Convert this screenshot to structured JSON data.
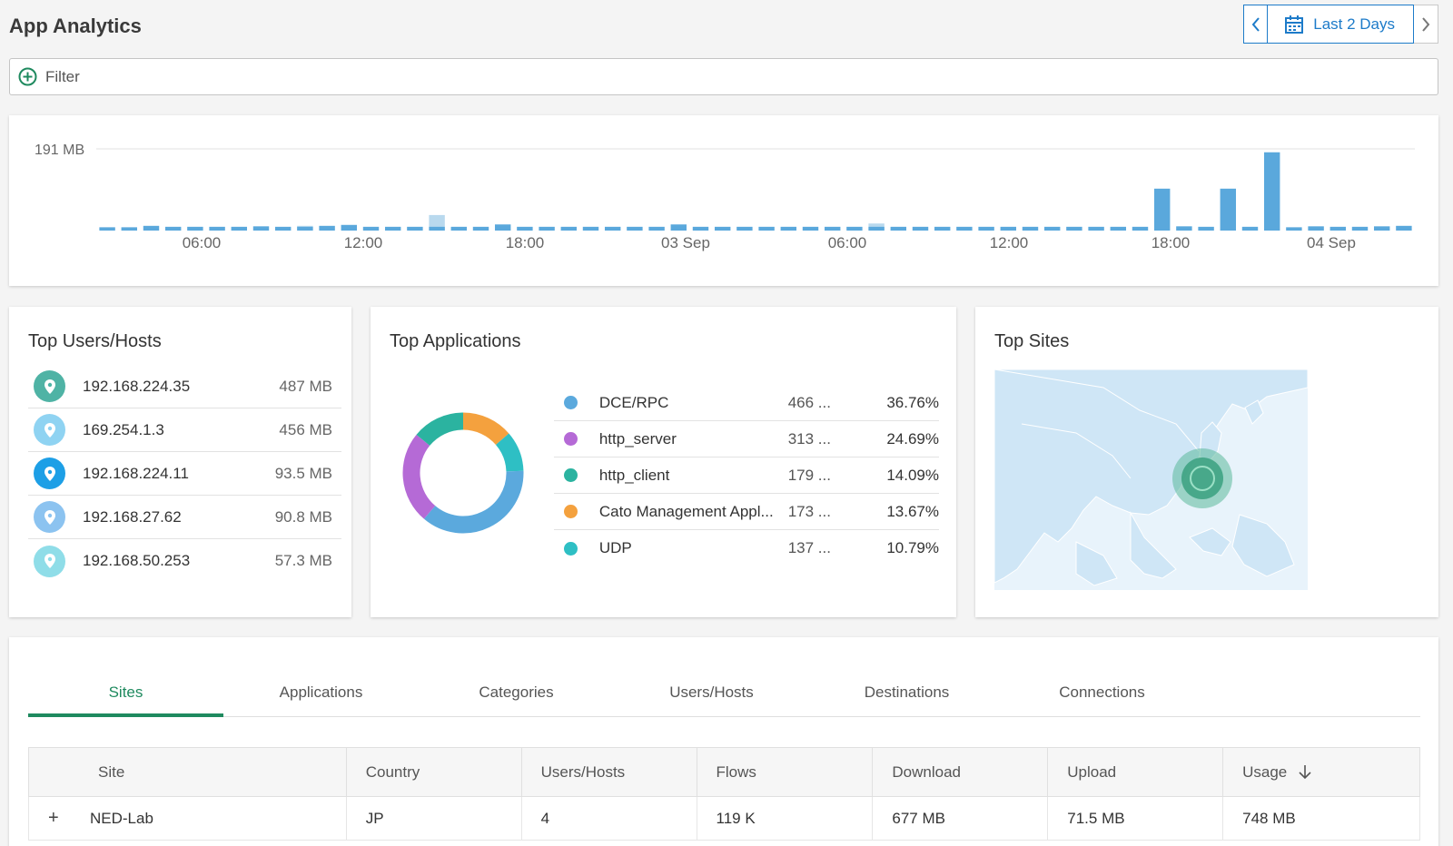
{
  "header": {
    "title": "App Analytics",
    "date_range_label": "Last 2 Days"
  },
  "filter": {
    "label": "Filter"
  },
  "timeline": {
    "y_max_label": "191 MB",
    "x_labels": [
      "06:00",
      "12:00",
      "18:00",
      "03 Sep",
      "06:00",
      "12:00",
      "18:00",
      "04 Sep"
    ]
  },
  "chart_data": {
    "type": "bar",
    "ylabel": "",
    "y_tick_label": "191 MB",
    "ylim": [
      0,
      191
    ],
    "x_tick_labels": [
      "06:00",
      "12:00",
      "18:00",
      "03 Sep",
      "06:00",
      "12:00",
      "18:00",
      "04 Sep"
    ],
    "values": [
      14,
      14,
      20,
      16,
      16,
      16,
      16,
      18,
      16,
      16,
      20,
      24,
      16,
      16,
      16,
      16,
      16,
      16,
      26,
      16,
      16,
      16,
      16,
      16,
      16,
      16,
      26,
      16,
      16,
      16,
      16,
      16,
      16,
      16,
      16,
      16,
      16,
      16,
      16,
      16,
      16,
      16,
      16,
      16,
      16,
      16,
      16,
      16,
      98,
      18,
      16,
      98,
      16,
      183,
      14,
      18,
      16,
      16,
      18,
      20
    ],
    "overlay_values": {
      "9": 20,
      "15": 66,
      "35": 30
    },
    "colors": {
      "bar": "#5aa8dc",
      "overlay": "#b9d9ee"
    }
  },
  "top_users": {
    "title": "Top Users/Hosts",
    "items": [
      {
        "ip": "192.168.224.35",
        "usage": "487 MB",
        "color": "#4fb3a5"
      },
      {
        "ip": "169.254.1.3",
        "usage": "456 MB",
        "color": "#8fd3f2"
      },
      {
        "ip": "192.168.224.11",
        "usage": "93.5 MB",
        "color": "#1d9fe6"
      },
      {
        "ip": "192.168.27.62",
        "usage": "90.8 MB",
        "color": "#8cc3f0"
      },
      {
        "ip": "192.168.50.253",
        "usage": "57.3 MB",
        "color": "#8fdde8"
      }
    ]
  },
  "top_apps": {
    "title": "Top Applications",
    "items": [
      {
        "name": "DCE/RPC",
        "usage": "466 ...",
        "pct": "36.76%",
        "value": 36.76,
        "color": "#5ba9dd"
      },
      {
        "name": "http_server",
        "usage": "313 ...",
        "pct": "24.69%",
        "value": 24.69,
        "color": "#b56ad6"
      },
      {
        "name": "http_client",
        "usage": "179 ...",
        "pct": "14.09%",
        "value": 14.09,
        "color": "#2bb3a0"
      },
      {
        "name": "Cato Management Appl...",
        "usage": "173 ...",
        "pct": "13.67%",
        "value": 13.67,
        "color": "#f4a13e"
      },
      {
        "name": "UDP",
        "usage": "137 ...",
        "pct": "10.79%",
        "value": 10.79,
        "color": "#2ebfc4"
      }
    ]
  },
  "top_sites": {
    "title": "Top Sites"
  },
  "tabs": [
    "Sites",
    "Applications",
    "Categories",
    "Users/Hosts",
    "Destinations",
    "Connections"
  ],
  "table": {
    "headers": [
      "Site",
      "Country",
      "Users/Hosts",
      "Flows",
      "Download",
      "Upload",
      "Usage"
    ],
    "rows": [
      {
        "site": "NED-Lab",
        "country": "JP",
        "users": "4",
        "flows": "119 K",
        "download": "677 MB",
        "upload": "71.5 MB",
        "usage": "748 MB"
      }
    ]
  }
}
